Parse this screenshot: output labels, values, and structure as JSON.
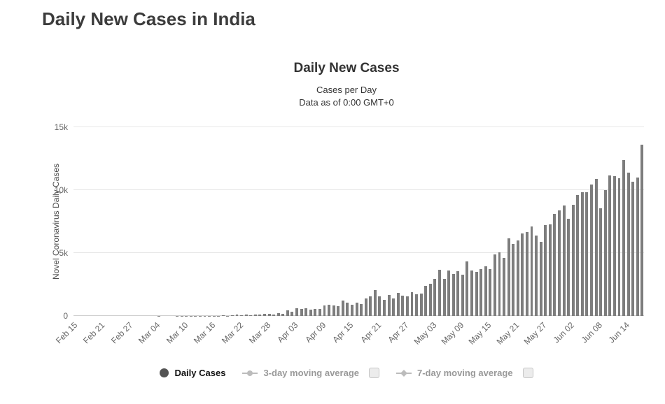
{
  "page": {
    "title": "Daily New Cases in India"
  },
  "chart_data": {
    "type": "bar",
    "title": "Daily New Cases",
    "subtitle": [
      "Cases per Day",
      "Data as of 0:00 GMT+0"
    ],
    "ylabel": "Novel Coronavirus Daily Cases",
    "xlabel": "",
    "ylim": [
      0,
      15000
    ],
    "grid": true,
    "legend_position": "bottom",
    "yticks": [
      {
        "value": 0,
        "label": "0"
      },
      {
        "value": 5000,
        "label": "5k"
      },
      {
        "value": 10000,
        "label": "10k"
      },
      {
        "value": 15000,
        "label": "15k"
      }
    ],
    "x_tick_every": 6,
    "x_tick_labels": [
      "Feb 15",
      "Feb 21",
      "Feb 27",
      "Mar 04",
      "Mar 10",
      "Mar 16",
      "Mar 22",
      "Mar 28",
      "Apr 03",
      "Apr 09",
      "Apr 15",
      "Apr 21",
      "Apr 27",
      "May 03",
      "May 09",
      "May 15",
      "May 21",
      "May 27",
      "Jun 02",
      "Jun 08",
      "Jun 14"
    ],
    "categories": [
      "Feb 15",
      "Feb 16",
      "Feb 17",
      "Feb 18",
      "Feb 19",
      "Feb 20",
      "Feb 21",
      "Feb 22",
      "Feb 23",
      "Feb 24",
      "Feb 25",
      "Feb 26",
      "Feb 27",
      "Feb 28",
      "Feb 29",
      "Mar 01",
      "Mar 02",
      "Mar 03",
      "Mar 04",
      "Mar 05",
      "Mar 06",
      "Mar 07",
      "Mar 08",
      "Mar 09",
      "Mar 10",
      "Mar 11",
      "Mar 12",
      "Mar 13",
      "Mar 14",
      "Mar 15",
      "Mar 16",
      "Mar 17",
      "Mar 18",
      "Mar 19",
      "Mar 20",
      "Mar 21",
      "Mar 22",
      "Mar 23",
      "Mar 24",
      "Mar 25",
      "Mar 26",
      "Mar 27",
      "Mar 28",
      "Mar 29",
      "Mar 30",
      "Mar 31",
      "Apr 01",
      "Apr 02",
      "Apr 03",
      "Apr 04",
      "Apr 05",
      "Apr 06",
      "Apr 07",
      "Apr 08",
      "Apr 09",
      "Apr 10",
      "Apr 11",
      "Apr 12",
      "Apr 13",
      "Apr 14",
      "Apr 15",
      "Apr 16",
      "Apr 17",
      "Apr 18",
      "Apr 19",
      "Apr 20",
      "Apr 21",
      "Apr 22",
      "Apr 23",
      "Apr 24",
      "Apr 25",
      "Apr 26",
      "Apr 27",
      "Apr 28",
      "Apr 29",
      "Apr 30",
      "May 01",
      "May 02",
      "May 03",
      "May 04",
      "May 05",
      "May 06",
      "May 07",
      "May 08",
      "May 09",
      "May 10",
      "May 11",
      "May 12",
      "May 13",
      "May 14",
      "May 15",
      "May 16",
      "May 17",
      "May 18",
      "May 19",
      "May 20",
      "May 21",
      "May 22",
      "May 23",
      "May 24",
      "May 25",
      "May 26",
      "May 27",
      "May 28",
      "May 29",
      "May 30",
      "May 31",
      "Jun 01",
      "Jun 02",
      "Jun 03",
      "Jun 04",
      "Jun 05",
      "Jun 06",
      "Jun 07",
      "Jun 08",
      "Jun 09",
      "Jun 10",
      "Jun 11",
      "Jun 12",
      "Jun 13",
      "Jun 14",
      "Jun 15",
      "Jun 16",
      "Jun 17"
    ],
    "values": [
      0,
      0,
      0,
      0,
      0,
      0,
      0,
      0,
      0,
      0,
      0,
      0,
      0,
      0,
      0,
      0,
      3,
      1,
      23,
      1,
      1,
      3,
      5,
      5,
      13,
      10,
      11,
      8,
      20,
      27,
      15,
      23,
      29,
      24,
      58,
      85,
      67,
      102,
      47,
      99,
      127,
      146,
      182,
      106,
      227,
      146,
      437,
      336,
      601,
      579,
      609,
      485,
      573,
      565,
      813,
      871,
      854,
      758,
      1243,
      1031,
      886,
      1061,
      922,
      1371,
      1580,
      2045,
      1537,
      1292,
      1667,
      1408,
      1835,
      1607,
      1561,
      1902,
      1702,
      1801,
      2396,
      2564,
      2952,
      3656,
      2971,
      3602,
      3344,
      3563,
      3277,
      4311,
      3592,
      3525,
      3722,
      3967,
      3736,
      4864,
      5050,
      4628,
      6154,
      5720,
      6023,
      6536,
      6666,
      7111,
      6414,
      5907,
      7246,
      7254,
      8138,
      8364,
      8789,
      7723,
      8813,
      9633,
      9847,
      9851,
      10438,
      10884,
      8536,
      9979,
      11156,
      11128,
      10956,
      12375,
      11374,
      10667,
      10974,
      13586
    ],
    "legend": [
      {
        "label": "Daily Cases",
        "marker": "circle",
        "active": true,
        "checkbox": false
      },
      {
        "label": "3-day moving average",
        "marker": "line-circle",
        "active": false,
        "checkbox": true
      },
      {
        "label": "7-day moving average",
        "marker": "line-diamond",
        "active": false,
        "checkbox": true
      }
    ],
    "colors": {
      "bar": "#7d7d7d",
      "grid": "#e6e6e6",
      "axis": "#d0d0d0",
      "tick_text": "#666666",
      "title_text": "#333333",
      "page_title": "#3c3c3c",
      "legend_active": "#111111",
      "legend_inactive": "#999999",
      "marker_daily": "#545454",
      "marker_inactive": "#bcbcbc"
    }
  }
}
